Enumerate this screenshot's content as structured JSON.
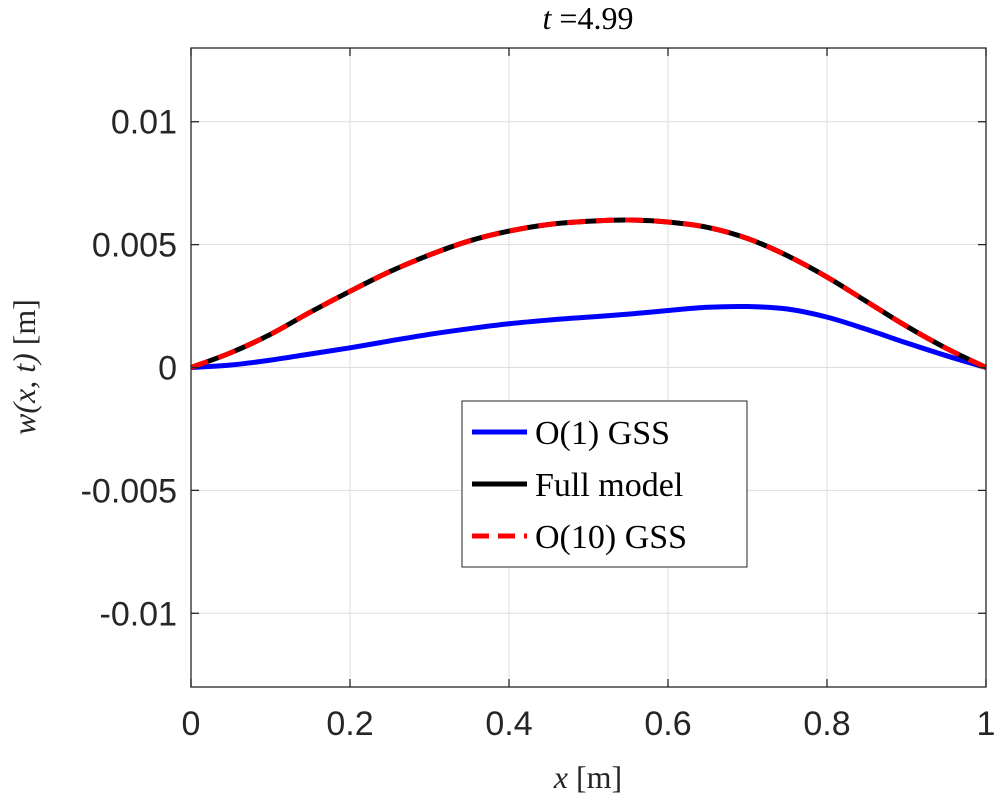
{
  "chart_data": {
    "type": "line",
    "title": {
      "var": "t",
      "eq": " =",
      "value": "4.99"
    },
    "xlabel": {
      "var": "x",
      "unit": " [m]"
    },
    "ylabel": {
      "var": "w(x, t)",
      "unit": " [m]"
    },
    "xlim": [
      0,
      1
    ],
    "ylim": [
      -0.013,
      0.013
    ],
    "xticks": [
      0,
      0.2,
      0.4,
      0.6,
      0.8,
      1
    ],
    "xtick_labels": [
      "0",
      "0.2",
      "0.4",
      "0.6",
      "0.8",
      "1"
    ],
    "yticks": [
      0.01,
      0.005,
      0,
      -0.005,
      -0.01
    ],
    "ytick_labels": [
      "0.01",
      "0.005",
      "0",
      "-0.005",
      "-0.01"
    ],
    "grid": true,
    "legend_position": "center",
    "x": [
      0,
      0.05,
      0.1,
      0.15,
      0.2,
      0.25,
      0.3,
      0.35,
      0.4,
      0.45,
      0.5,
      0.55,
      0.6,
      0.65,
      0.7,
      0.75,
      0.8,
      0.85,
      0.9,
      0.95,
      1.0
    ],
    "series": [
      {
        "name": "O(1) GSS",
        "color": "#0000ff",
        "style": "solid",
        "values": [
          0,
          0.0001,
          0.0003,
          0.00055,
          0.0008,
          0.00108,
          0.00135,
          0.00158,
          0.00178,
          0.00193,
          0.00205,
          0.00217,
          0.00232,
          0.00245,
          0.00248,
          0.00238,
          0.00205,
          0.00155,
          0.001,
          0.00048,
          0
        ]
      },
      {
        "name": "Full model",
        "color": "#000000",
        "style": "solid",
        "values": [
          0,
          0.0006,
          0.00135,
          0.00225,
          0.0031,
          0.0039,
          0.00458,
          0.00515,
          0.00555,
          0.00582,
          0.00595,
          0.006,
          0.00592,
          0.0057,
          0.00525,
          0.00455,
          0.00368,
          0.00268,
          0.00168,
          0.00078,
          0
        ]
      },
      {
        "name": "O(10) GSS",
        "color": "#ff0000",
        "style": "dashed",
        "values": [
          0,
          0.0006,
          0.00135,
          0.00225,
          0.0031,
          0.0039,
          0.00458,
          0.00515,
          0.00555,
          0.00582,
          0.00595,
          0.006,
          0.00592,
          0.0057,
          0.00525,
          0.00455,
          0.00368,
          0.00268,
          0.00168,
          0.00078,
          0
        ]
      }
    ]
  }
}
